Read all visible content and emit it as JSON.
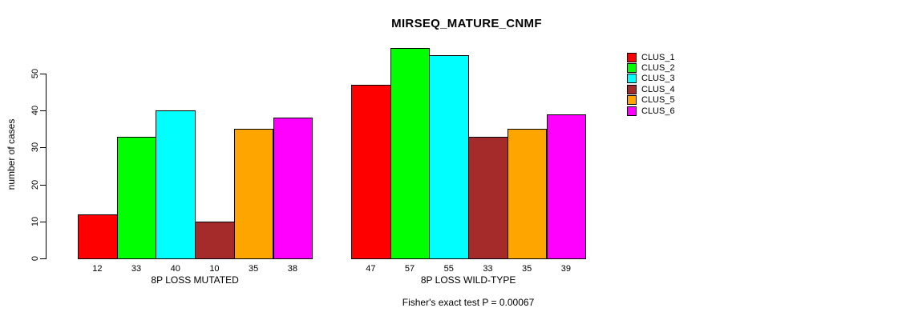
{
  "chart_data": {
    "type": "bar",
    "title": "MIRSEQ_MATURE_CNMF",
    "ylabel": "number of cases",
    "xlabel": "",
    "annotation": "Fisher's exact test P = 0.00067",
    "yticks": [
      0,
      10,
      20,
      30,
      40,
      50
    ],
    "ylim": [
      0,
      58
    ],
    "grid": false,
    "legend_position": "right",
    "series": [
      {
        "name": "CLUS_1",
        "color": "#FF0000"
      },
      {
        "name": "CLUS_2",
        "color": "#00FF00"
      },
      {
        "name": "CLUS_3",
        "color": "#00FFFF"
      },
      {
        "name": "CLUS_4",
        "color": "#A52A2A"
      },
      {
        "name": "CLUS_5",
        "color": "#FFA500"
      },
      {
        "name": "CLUS_6",
        "color": "#FF00FF"
      }
    ],
    "groups": [
      {
        "label": "8P LOSS MUTATED",
        "values": [
          12,
          33,
          40,
          10,
          35,
          38
        ]
      },
      {
        "label": "8P LOSS WILD-TYPE",
        "values": [
          47,
          57,
          55,
          33,
          35,
          39
        ]
      }
    ]
  }
}
